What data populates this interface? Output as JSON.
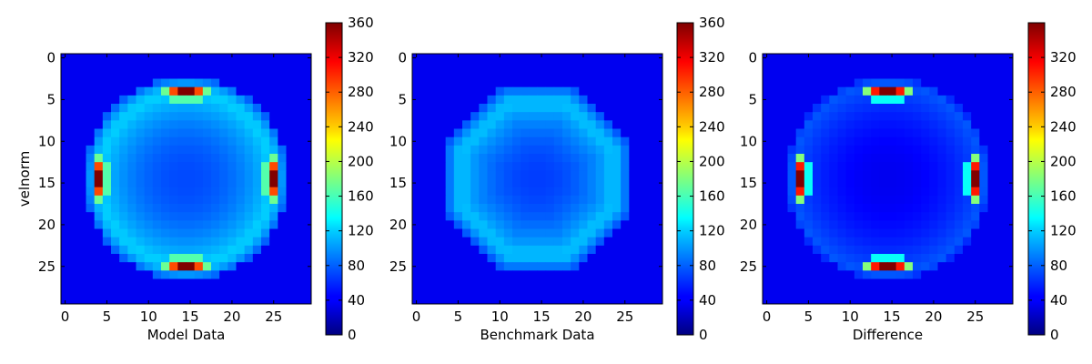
{
  "chart_data": [
    {
      "type": "heatmap",
      "title": "",
      "xlabel": "Model Data",
      "ylabel": "velnorm",
      "xlim": [
        -0.5,
        29.5
      ],
      "ylim": [
        29.5,
        -0.5
      ],
      "xticks": [
        0,
        5,
        10,
        15,
        20,
        25
      ],
      "yticks": [
        0,
        5,
        10,
        15,
        20,
        25
      ],
      "colormap": "jet",
      "color_range": [
        0,
        360
      ],
      "colorbar_ticks": [
        0,
        40,
        80,
        120,
        160,
        200,
        240,
        280,
        320,
        360
      ],
      "grid": false,
      "size": [
        30,
        30
      ],
      "field": {
        "center": [
          14.5,
          14.5
        ],
        "ring_radius": 10.3,
        "ring_peak": 88,
        "ring_width": 2.2,
        "inner_min": 35,
        "outer_cutoff_radius": 12.3,
        "hotspots": [
          {
            "row": 4,
            "cols": [
              13,
              14,
              15,
              16
            ],
            "values": [
              280,
              360,
              360,
              280
            ]
          },
          {
            "row": 4,
            "cols": [
              12,
              17
            ],
            "values": [
              150,
              150
            ]
          },
          {
            "row": 5,
            "cols": [
              13,
              14,
              15,
              16
            ],
            "values": [
              140,
              140,
              140,
              140
            ]
          },
          {
            "row": 25,
            "cols": [
              13,
              14,
              15,
              16
            ],
            "values": [
              280,
              360,
              360,
              280
            ]
          },
          {
            "row": 25,
            "cols": [
              12,
              17
            ],
            "values": [
              150,
              150
            ]
          },
          {
            "row": 24,
            "cols": [
              13,
              14,
              15,
              16
            ],
            "values": [
              140,
              140,
              140,
              140
            ]
          },
          {
            "col": 4,
            "rows": [
              13,
              14,
              15,
              16
            ],
            "values": [
              280,
              360,
              360,
              280
            ]
          },
          {
            "col": 4,
            "rows": [
              12,
              17
            ],
            "values": [
              150,
              150
            ]
          },
          {
            "col": 5,
            "rows": [
              13,
              14,
              15,
              16
            ],
            "values": [
              140,
              140,
              140,
              140
            ]
          },
          {
            "col": 25,
            "rows": [
              13,
              14,
              15,
              16
            ],
            "values": [
              280,
              360,
              360,
              280
            ]
          },
          {
            "col": 25,
            "rows": [
              12,
              17
            ],
            "values": [
              150,
              150
            ]
          },
          {
            "col": 24,
            "rows": [
              13,
              14,
              15,
              16
            ],
            "values": [
              140,
              140,
              140,
              140
            ]
          }
        ]
      }
    },
    {
      "type": "heatmap",
      "title": "",
      "xlabel": "Benchmark Data",
      "ylabel": "",
      "xlim": [
        -0.5,
        29.5
      ],
      "ylim": [
        29.5,
        -0.5
      ],
      "xticks": [
        0,
        5,
        10,
        15,
        20,
        25
      ],
      "yticks": [
        0,
        5,
        10,
        15,
        20,
        25
      ],
      "colormap": "jet",
      "color_range": [
        0,
        360
      ],
      "colorbar_ticks": [
        0,
        40,
        80,
        120,
        160,
        200,
        240,
        280,
        320,
        360
      ],
      "grid": false,
      "size": [
        30,
        30
      ],
      "field": {
        "center": [
          14.5,
          14.5
        ],
        "ring_radius": 9.0,
        "ring_peak": 82,
        "ring_width": 2.3,
        "inner_min": 30,
        "outer_cutoff_radius": 10.9,
        "corner_shape": "octagon",
        "hotspots": []
      }
    },
    {
      "type": "heatmap",
      "title": "",
      "xlabel": "Difference",
      "ylabel": "",
      "xlim": [
        -0.5,
        29.5
      ],
      "ylim": [
        29.5,
        -0.5
      ],
      "xticks": [
        0,
        5,
        10,
        15,
        20,
        25
      ],
      "yticks": [
        0,
        5,
        10,
        15,
        20,
        25
      ],
      "colormap": "jet",
      "color_range": [
        0,
        360
      ],
      "colorbar_ticks": [
        0,
        40,
        80,
        120,
        160,
        200,
        240,
        280,
        320
      ],
      "grid": false,
      "size": [
        30,
        30
      ],
      "field": {
        "center": [
          14.5,
          14.5
        ],
        "ring_radius": 11.5,
        "ring_peak": 40,
        "ring_width": 0.8,
        "inner_min": 0,
        "outer_cutoff_radius": 12.3,
        "hotspots": [
          {
            "row": 4,
            "cols": [
              13,
              14,
              15,
              16
            ],
            "values": [
              300,
              360,
              360,
              300
            ]
          },
          {
            "row": 4,
            "cols": [
              12,
              17
            ],
            "values": [
              160,
              160
            ]
          },
          {
            "row": 5,
            "cols": [
              13,
              14,
              15,
              16
            ],
            "values": [
              110,
              110,
              110,
              110
            ]
          },
          {
            "row": 25,
            "cols": [
              13,
              14,
              15,
              16
            ],
            "values": [
              300,
              360,
              360,
              300
            ]
          },
          {
            "row": 25,
            "cols": [
              12,
              17
            ],
            "values": [
              160,
              160
            ]
          },
          {
            "row": 24,
            "cols": [
              13,
              14,
              15,
              16
            ],
            "values": [
              110,
              110,
              110,
              110
            ]
          },
          {
            "col": 4,
            "rows": [
              13,
              14,
              15,
              16
            ],
            "values": [
              300,
              360,
              360,
              300
            ]
          },
          {
            "col": 4,
            "rows": [
              12,
              17
            ],
            "values": [
              160,
              160
            ]
          },
          {
            "col": 5,
            "rows": [
              13,
              14,
              15,
              16
            ],
            "values": [
              110,
              110,
              110,
              110
            ]
          },
          {
            "col": 25,
            "rows": [
              13,
              14,
              15,
              16
            ],
            "values": [
              300,
              360,
              360,
              300
            ]
          },
          {
            "col": 25,
            "rows": [
              12,
              17
            ],
            "values": [
              160,
              160
            ]
          },
          {
            "col": 24,
            "rows": [
              13,
              14,
              15,
              16
            ],
            "values": [
              110,
              110,
              110,
              110
            ]
          }
        ]
      }
    }
  ]
}
